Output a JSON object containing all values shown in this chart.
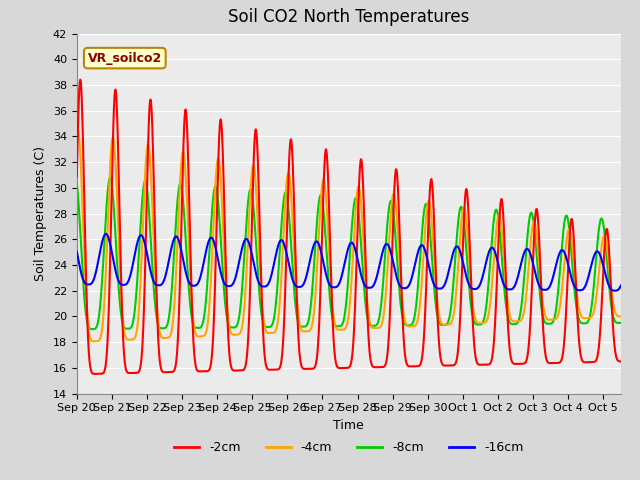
{
  "title": "Soil CO2 North Temperatures",
  "ylabel": "Soil Temperatures (C)",
  "xlabel": "Time",
  "annotation_text": "VR_soilco2",
  "ylim": [
    14,
    42
  ],
  "yticks": [
    14,
    16,
    18,
    20,
    22,
    24,
    26,
    28,
    30,
    32,
    34,
    36,
    38,
    40,
    42
  ],
  "fig_bg_color": "#d8d8d8",
  "axes_bg_color": "#ebebeb",
  "grid_color": "#ffffff",
  "line_colors": [
    "#ff0000",
    "#ffa500",
    "#00cc00",
    "#0000ff"
  ],
  "line_labels": [
    "-2cm",
    "-4cm",
    "-8cm",
    "-16cm"
  ],
  "legend_items": [
    "-2cm",
    "-4cm",
    "-8cm",
    "-16cm"
  ],
  "num_days": 15.5,
  "title_fontsize": 12,
  "label_fontsize": 9,
  "tick_fontsize": 8,
  "annotation_fontsize": 9,
  "linewidth": 1.5
}
